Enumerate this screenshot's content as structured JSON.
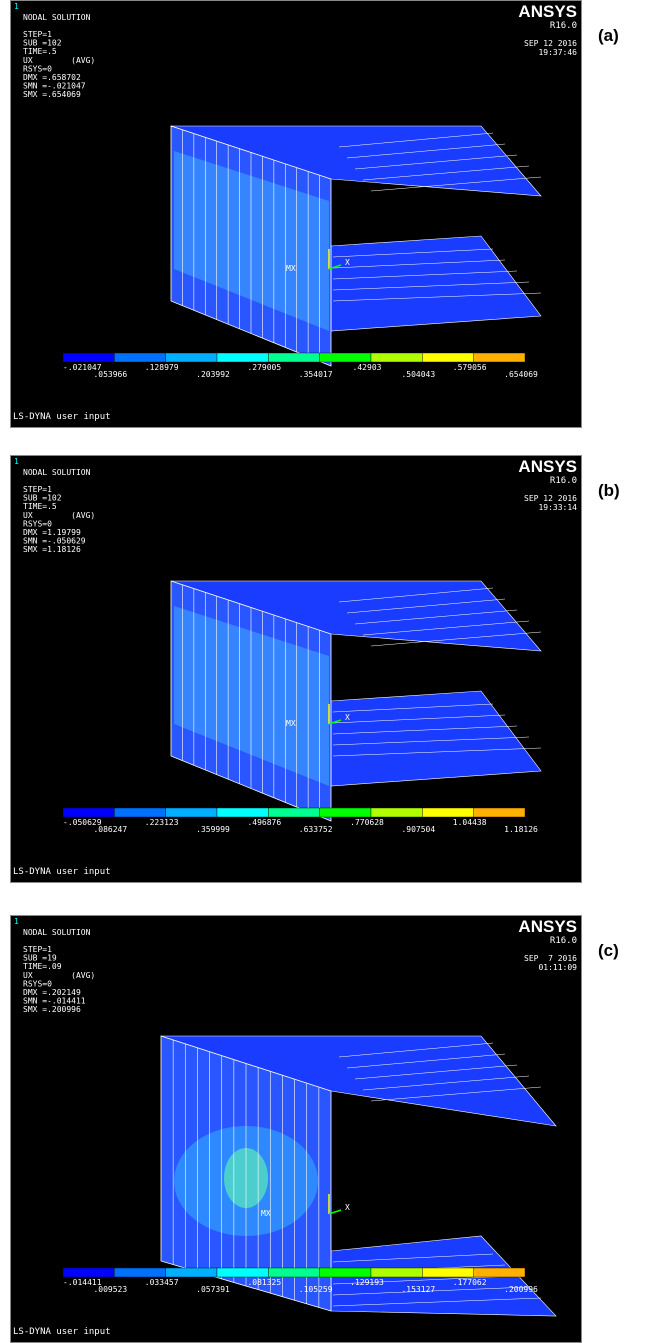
{
  "panels": [
    {
      "label": "(a)",
      "window_number": "1",
      "title": "NODAL SOLUTION",
      "info": [
        "STEP=1",
        "SUB =102",
        "TIME=.5",
        "UX        (AVG)",
        "RSYS=0",
        "DMX =.658702",
        "SMN =-.021047",
        "SMX =.654069"
      ],
      "brand": "ANSYS",
      "version": "R16.0",
      "date": "SEP 12 2016",
      "time": "19:37:46",
      "marker": "MX",
      "axis_label": "X",
      "legend": [
        "-.021047",
        ".053966",
        ".128979",
        ".203992",
        ".279005",
        ".354017",
        ".42903",
        ".504043",
        ".579056",
        ".654069"
      ],
      "footer": "LS-DYNA user input"
    },
    {
      "label": "(b)",
      "window_number": "1",
      "title": "NODAL SOLUTION",
      "info": [
        "STEP=1",
        "SUB =102",
        "TIME=.5",
        "UX        (AVG)",
        "RSYS=0",
        "DMX =1.19799",
        "SMN =-.050629",
        "SMX =1.18126"
      ],
      "brand": "ANSYS",
      "version": "R16.0",
      "date": "SEP 12 2016",
      "time": "19:33:14",
      "marker": "MX",
      "axis_label": "X",
      "legend": [
        "-.050629",
        ".086247",
        ".223123",
        ".359999",
        ".496876",
        ".633752",
        ".770628",
        ".907504",
        "1.04438",
        "1.18126"
      ],
      "footer": "LS-DYNA user input"
    },
    {
      "label": "(c)",
      "window_number": "1",
      "title": "NODAL SOLUTION",
      "info": [
        "STEP=1",
        "SUB =19",
        "TIME=.09",
        "UX        (AVG)",
        "RSYS=0",
        "DMX =.202149",
        "SMN =-.014411",
        "SMX =.200996"
      ],
      "brand": "ANSYS",
      "version": "R16.0",
      "date": "SEP  7 2016",
      "time": "01:11:09",
      "marker": "MX",
      "axis_label": "X",
      "legend": [
        "-.014411",
        ".009523",
        ".033457",
        ".057391",
        ".081325",
        ".105259",
        ".129193",
        ".153127",
        ".177062",
        ".200996"
      ],
      "footer": "LS-DYNA user input"
    }
  ]
}
